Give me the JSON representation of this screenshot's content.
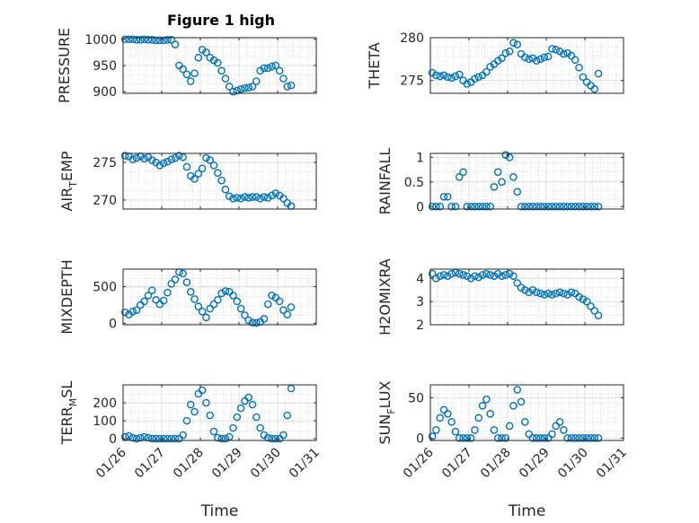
{
  "title": "Figure 1 high",
  "colors": {
    "marker": "#0072BD",
    "axis": "#262626",
    "grid": "#c8c8c8"
  },
  "x_ticks": [
    "01/26",
    "01/27",
    "01/28",
    "01/29",
    "01/30",
    "01/31"
  ],
  "xlabel": "Time",
  "chart_data": [
    {
      "type": "scatter",
      "ylabel": "PRESSURE",
      "xlim": [
        0,
        5
      ],
      "ylim": [
        897,
        1003
      ],
      "yticks": [
        900,
        950,
        1000
      ],
      "grid": "on",
      "x": [
        0.05,
        0.15,
        0.25,
        0.35,
        0.45,
        0.55,
        0.65,
        0.75,
        0.85,
        0.95,
        1.05,
        1.15,
        1.25,
        1.35,
        1.45,
        1.55,
        1.65,
        1.75,
        1.85,
        1.95,
        2.05,
        2.15,
        2.25,
        2.35,
        2.45,
        2.55,
        2.65,
        2.75,
        2.85,
        2.95,
        3.05,
        3.15,
        3.25,
        3.35,
        3.45,
        3.55,
        3.65,
        3.75,
        3.85,
        3.95,
        4.05,
        4.15,
        4.25,
        4.35
      ],
      "y": [
        1000,
        1000,
        1000,
        999,
        999,
        1000,
        999,
        999,
        998,
        998,
        998,
        999,
        999,
        990,
        950,
        943,
        933,
        920,
        935,
        965,
        980,
        975,
        965,
        960,
        955,
        940,
        925,
        910,
        900,
        902,
        905,
        907,
        908,
        910,
        920,
        940,
        945,
        945,
        948,
        950,
        940,
        925,
        910,
        912
      ]
    },
    {
      "type": "scatter",
      "ylabel": "THETA",
      "xlim": [
        0,
        5
      ],
      "ylim": [
        273.5,
        280
      ],
      "yticks": [
        275,
        280
      ],
      "grid": "on",
      "x": [
        0.05,
        0.15,
        0.25,
        0.35,
        0.45,
        0.55,
        0.65,
        0.75,
        0.85,
        0.95,
        1.05,
        1.15,
        1.25,
        1.35,
        1.45,
        1.55,
        1.65,
        1.75,
        1.85,
        1.95,
        2.05,
        2.15,
        2.25,
        2.35,
        2.45,
        2.55,
        2.65,
        2.75,
        2.85,
        2.95,
        3.05,
        3.15,
        3.25,
        3.35,
        3.45,
        3.55,
        3.65,
        3.75,
        3.85,
        3.95,
        4.05,
        4.15,
        4.25,
        4.35
      ],
      "y": [
        275.9,
        275.6,
        275.5,
        275.6,
        275.4,
        275.3,
        275.5,
        275.7,
        275.0,
        274.6,
        274.8,
        275.2,
        275.4,
        275.6,
        276.0,
        276.6,
        276.9,
        277.3,
        277.6,
        278.2,
        278.4,
        279.4,
        279.2,
        278.1,
        277.7,
        277.5,
        277.6,
        277.3,
        277.5,
        277.7,
        277.8,
        278.7,
        278.6,
        278.4,
        278.1,
        278.2,
        277.9,
        277.4,
        276.5,
        275.4,
        274.8,
        274.4,
        274.0,
        275.8
      ]
    },
    {
      "type": "scatter",
      "ylabel": "AIR_TEMP",
      "xlim": [
        0,
        5
      ],
      "ylim": [
        268.8,
        276.2
      ],
      "yticks": [
        270,
        275
      ],
      "grid": "on",
      "x": [
        0.05,
        0.15,
        0.25,
        0.35,
        0.45,
        0.55,
        0.65,
        0.75,
        0.85,
        0.95,
        1.05,
        1.15,
        1.25,
        1.35,
        1.45,
        1.55,
        1.65,
        1.75,
        1.85,
        1.95,
        2.05,
        2.15,
        2.25,
        2.35,
        2.45,
        2.55,
        2.65,
        2.75,
        2.85,
        2.95,
        3.05,
        3.15,
        3.25,
        3.35,
        3.45,
        3.55,
        3.65,
        3.75,
        3.85,
        3.95,
        4.05,
        4.15,
        4.25,
        4.35
      ],
      "y": [
        275.9,
        275.8,
        275.4,
        275.6,
        275.8,
        275.5,
        275.7,
        275.3,
        275.0,
        274.6,
        274.9,
        275.1,
        275.4,
        275.6,
        275.9,
        275.7,
        274.4,
        273.2,
        272.8,
        273.5,
        274.2,
        275.6,
        275.3,
        274.6,
        273.6,
        272.6,
        271.4,
        270.5,
        270.2,
        270.3,
        270.2,
        270.4,
        270.3,
        270.4,
        270.4,
        270.2,
        270.4,
        270.3,
        270.6,
        270.9,
        270.6,
        270.2,
        269.6,
        269.2
      ]
    },
    {
      "type": "scatter",
      "ylabel": "RAINFALL",
      "xlim": [
        0,
        5
      ],
      "ylim": [
        -0.05,
        1.08
      ],
      "yticks": [
        0,
        0.5,
        1
      ],
      "grid": "on",
      "x": [
        0.05,
        0.15,
        0.25,
        0.35,
        0.45,
        0.55,
        0.65,
        0.75,
        0.85,
        0.95,
        1.05,
        1.15,
        1.25,
        1.35,
        1.45,
        1.55,
        1.65,
        1.75,
        1.85,
        1.95,
        2.05,
        2.15,
        2.25,
        2.35,
        2.45,
        2.55,
        2.65,
        2.75,
        2.85,
        2.95,
        3.05,
        3.15,
        3.25,
        3.35,
        3.45,
        3.55,
        3.65,
        3.75,
        3.85,
        3.95,
        4.05,
        4.15,
        4.25,
        4.35
      ],
      "y": [
        0,
        0,
        0,
        0.2,
        0.2,
        0,
        0,
        0.6,
        0.7,
        0,
        0,
        0,
        0,
        0,
        0,
        0,
        0.4,
        0.7,
        0.5,
        1.05,
        1.0,
        0.6,
        0.3,
        0,
        0,
        0,
        0,
        0,
        0,
        0,
        0,
        0,
        0,
        0,
        0,
        0,
        0,
        0,
        0,
        0,
        0,
        0,
        0,
        0
      ]
    },
    {
      "type": "scatter",
      "ylabel": "MIXDEPTH",
      "xlim": [
        0,
        5
      ],
      "ylim": [
        -20,
        740
      ],
      "yticks": [
        0,
        500
      ],
      "grid": "on",
      "x": [
        0.05,
        0.15,
        0.25,
        0.35,
        0.45,
        0.55,
        0.65,
        0.75,
        0.85,
        0.95,
        1.05,
        1.15,
        1.25,
        1.35,
        1.45,
        1.55,
        1.65,
        1.75,
        1.85,
        1.95,
        2.05,
        2.15,
        2.25,
        2.35,
        2.45,
        2.55,
        2.65,
        2.75,
        2.85,
        2.95,
        3.05,
        3.15,
        3.25,
        3.35,
        3.45,
        3.55,
        3.65,
        3.75,
        3.85,
        3.95,
        4.05,
        4.15,
        4.25,
        4.35
      ],
      "y": [
        150,
        120,
        160,
        180,
        250,
        300,
        380,
        450,
        320,
        260,
        310,
        420,
        540,
        600,
        700,
        680,
        560,
        430,
        330,
        230,
        160,
        80,
        200,
        260,
        320,
        410,
        440,
        430,
        380,
        300,
        200,
        110,
        40,
        10,
        5,
        20,
        60,
        260,
        380,
        350,
        300,
        180,
        120,
        220
      ]
    },
    {
      "type": "scatter",
      "ylabel": "H2OMIXRA",
      "xlim": [
        0,
        5
      ],
      "ylim": [
        2,
        4.4
      ],
      "yticks": [
        2,
        3,
        4
      ],
      "grid": "on",
      "x": [
        0.05,
        0.15,
        0.25,
        0.35,
        0.45,
        0.55,
        0.65,
        0.75,
        0.85,
        0.95,
        1.05,
        1.15,
        1.25,
        1.35,
        1.45,
        1.55,
        1.65,
        1.75,
        1.85,
        1.95,
        2.05,
        2.15,
        2.25,
        2.35,
        2.45,
        2.55,
        2.65,
        2.75,
        2.85,
        2.95,
        3.05,
        3.15,
        3.25,
        3.35,
        3.45,
        3.55,
        3.65,
        3.75,
        3.85,
        3.95,
        4.05,
        4.15,
        4.25,
        4.35
      ],
      "y": [
        4.2,
        4.0,
        4.1,
        4.15,
        4.1,
        4.2,
        4.25,
        4.2,
        4.15,
        4.1,
        4.0,
        4.1,
        4.05,
        4.15,
        4.2,
        4.15,
        4.1,
        4.2,
        4.1,
        4.15,
        4.2,
        4.1,
        3.8,
        3.6,
        3.5,
        3.4,
        3.5,
        3.4,
        3.35,
        3.3,
        3.35,
        3.3,
        3.35,
        3.4,
        3.35,
        3.3,
        3.4,
        3.35,
        3.2,
        3.1,
        3.0,
        2.8,
        2.6,
        2.4
      ]
    },
    {
      "type": "scatter",
      "ylabel": "TERR_MSL",
      "xlim": [
        0,
        5
      ],
      "ylim": [
        -10,
        300
      ],
      "yticks": [
        0,
        100,
        200
      ],
      "grid": "on",
      "x": [
        0.05,
        0.15,
        0.25,
        0.35,
        0.45,
        0.55,
        0.65,
        0.75,
        0.85,
        0.95,
        1.05,
        1.15,
        1.25,
        1.35,
        1.45,
        1.55,
        1.65,
        1.75,
        1.85,
        1.95,
        2.05,
        2.15,
        2.25,
        2.35,
        2.45,
        2.55,
        2.65,
        2.75,
        2.85,
        2.95,
        3.05,
        3.15,
        3.25,
        3.35,
        3.45,
        3.55,
        3.65,
        3.75,
        3.85,
        3.95,
        4.05,
        4.15,
        4.25,
        4.35
      ],
      "y": [
        10,
        15,
        5,
        0,
        5,
        10,
        5,
        0,
        0,
        0,
        0,
        0,
        0,
        0,
        0,
        20,
        100,
        190,
        150,
        250,
        270,
        200,
        130,
        40,
        5,
        0,
        0,
        10,
        60,
        120,
        170,
        210,
        230,
        190,
        120,
        60,
        20,
        5,
        0,
        0,
        0,
        20,
        130,
        280
      ]
    },
    {
      "type": "scatter",
      "ylabel": "SUN_FLUX",
      "xlim": [
        0,
        5
      ],
      "ylim": [
        -3,
        66
      ],
      "yticks": [
        0,
        50
      ],
      "grid": "on",
      "x": [
        0.05,
        0.15,
        0.25,
        0.35,
        0.45,
        0.55,
        0.65,
        0.75,
        0.85,
        0.95,
        1.05,
        1.15,
        1.25,
        1.35,
        1.45,
        1.55,
        1.65,
        1.75,
        1.85,
        1.95,
        2.05,
        2.15,
        2.25,
        2.35,
        2.45,
        2.55,
        2.65,
        2.75,
        2.85,
        2.95,
        3.05,
        3.15,
        3.25,
        3.35,
        3.45,
        3.55,
        3.65,
        3.75,
        3.85,
        3.95,
        4.05,
        4.15,
        4.25,
        4.35
      ],
      "y": [
        2,
        10,
        25,
        35,
        30,
        20,
        8,
        0,
        0,
        0,
        0,
        10,
        25,
        40,
        48,
        30,
        10,
        0,
        0,
        0,
        15,
        40,
        60,
        45,
        20,
        5,
        0,
        0,
        0,
        0,
        0,
        5,
        15,
        20,
        10,
        0,
        0,
        0,
        0,
        0,
        0,
        0,
        0,
        0
      ]
    }
  ]
}
